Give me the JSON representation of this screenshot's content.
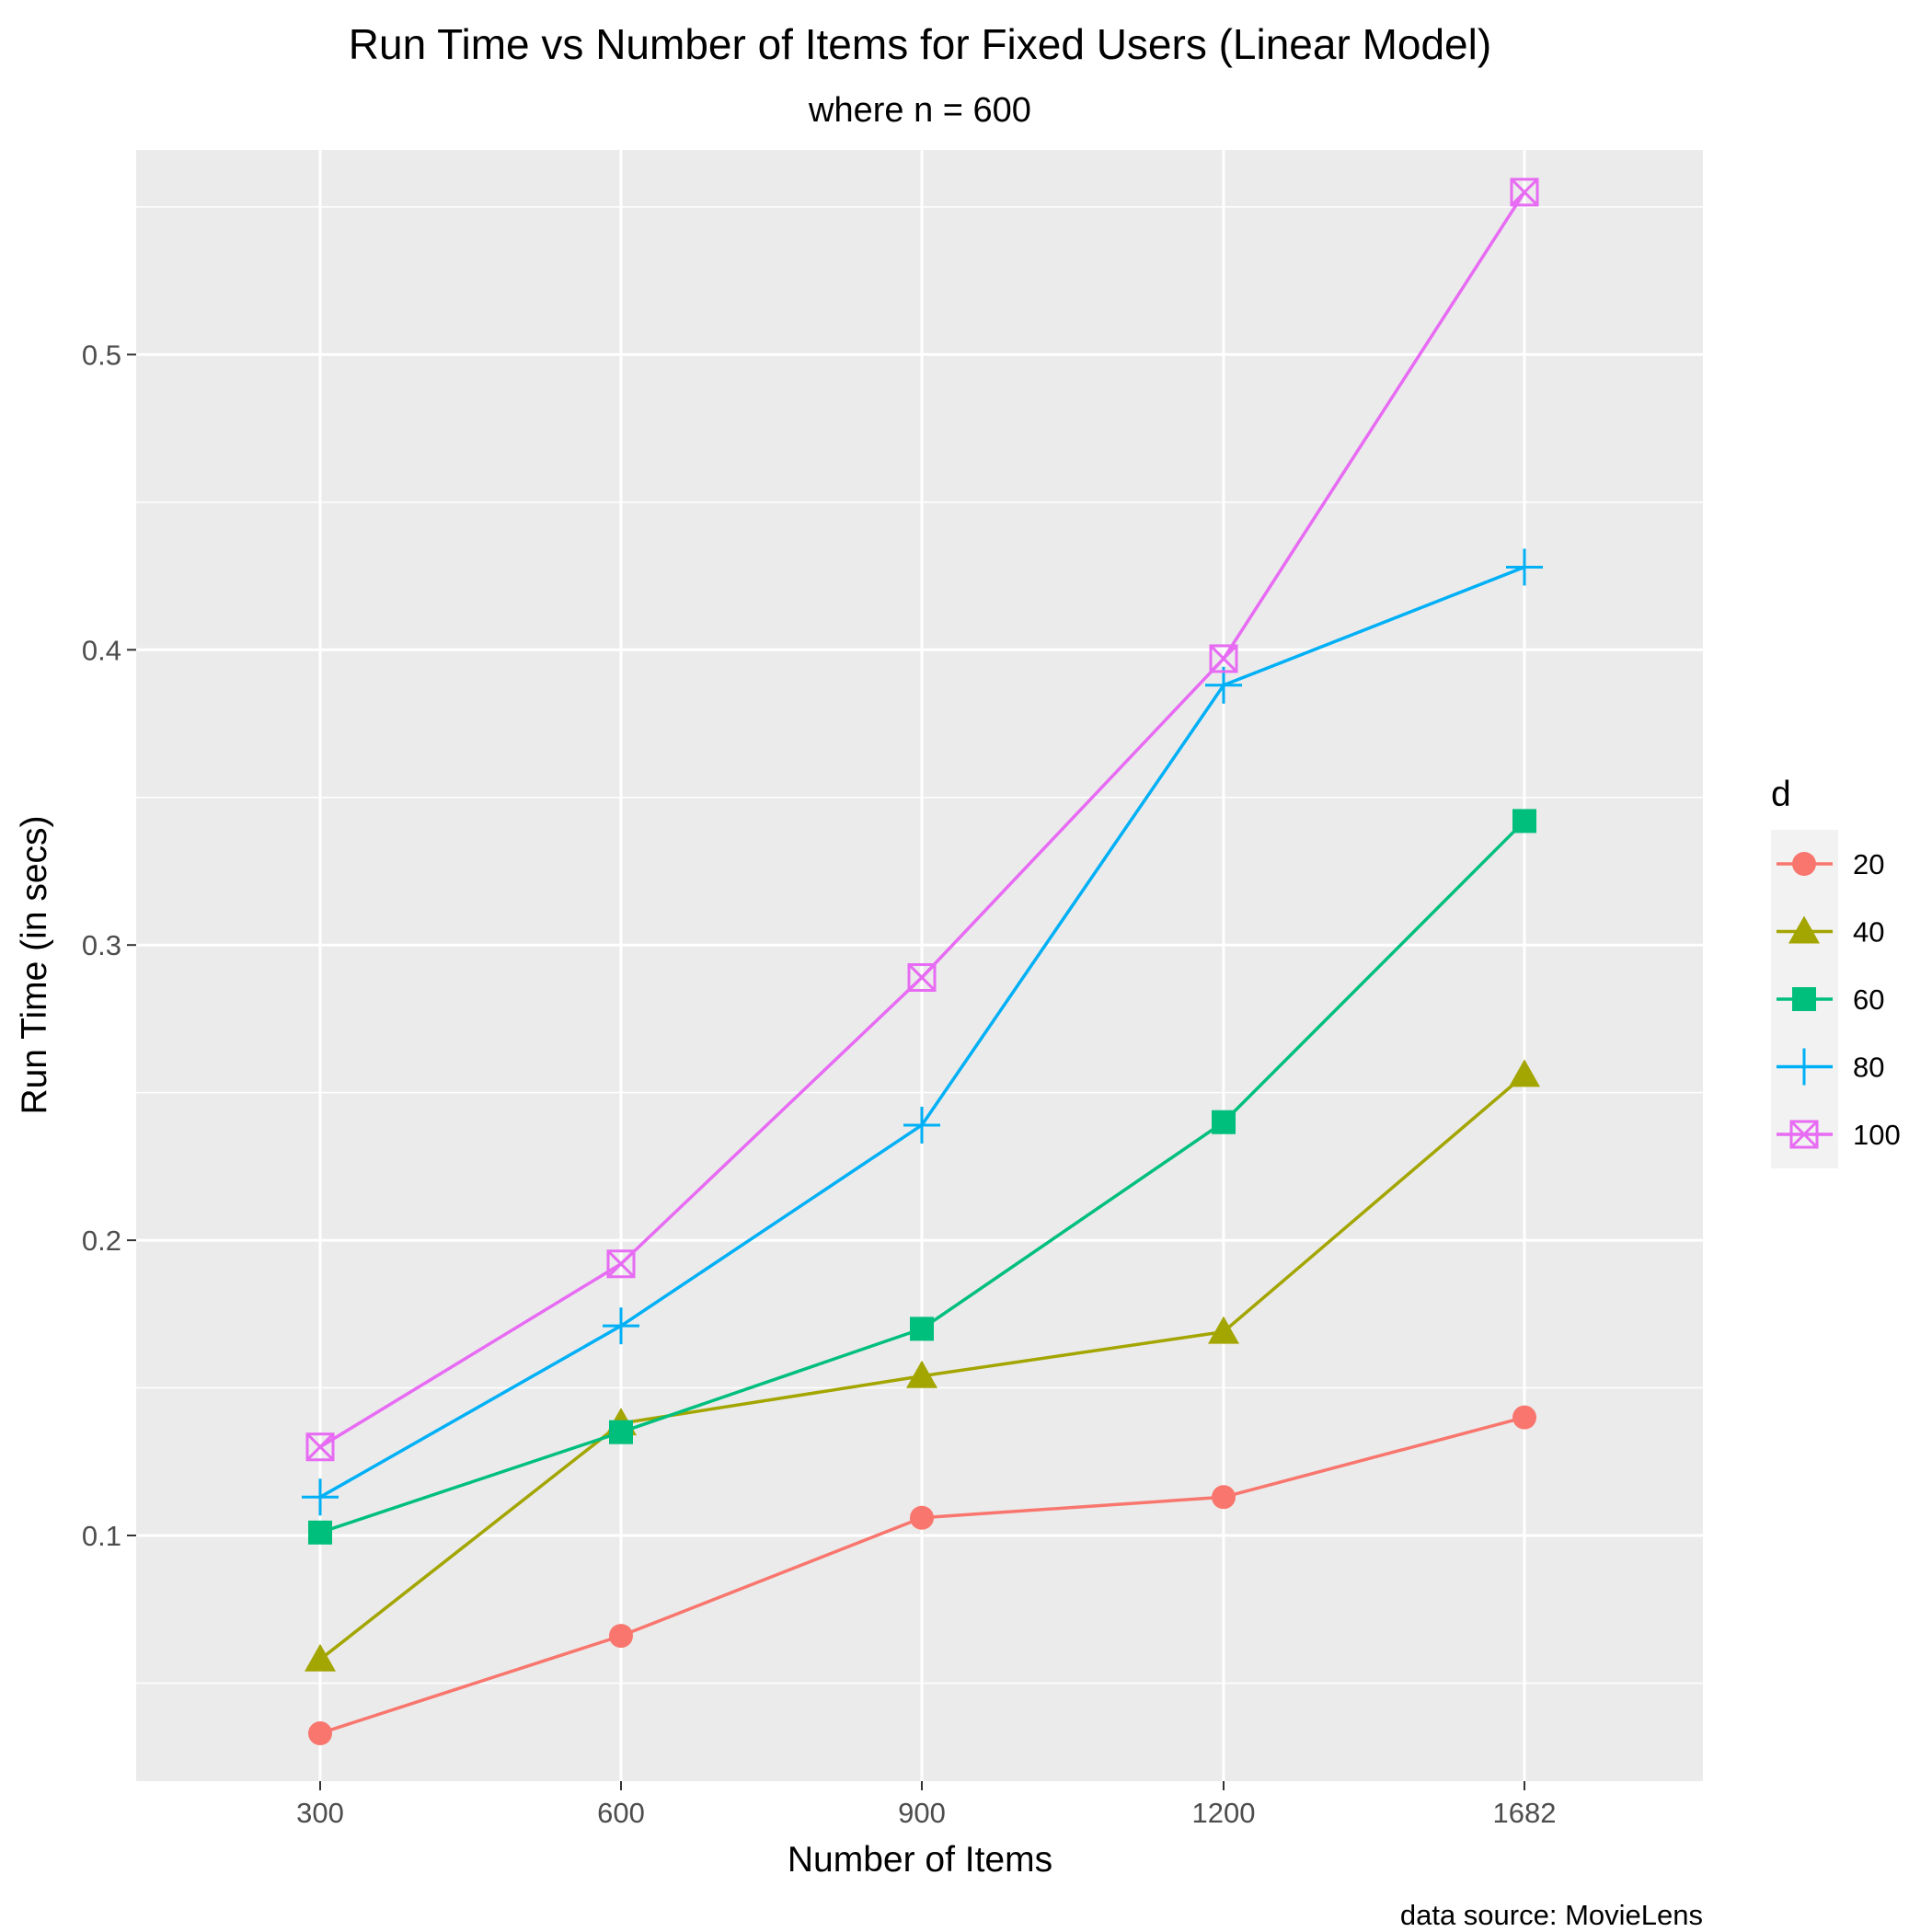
{
  "chart_data": {
    "type": "line",
    "title": "Run Time vs Number of Items for Fixed Users (Linear Model)",
    "subtitle": "where n = 600",
    "xlabel": "Number of Items",
    "ylabel": "Run Time (in secs)",
    "caption": "data source: MovieLens",
    "categories": [
      "300",
      "600",
      "900",
      "1200",
      "1682"
    ],
    "y_ticks": [
      "0.1",
      "0.2",
      "0.3",
      "0.4",
      "0.5"
    ],
    "ylim": [
      0.0168,
      0.5693
    ],
    "grid": true,
    "legend": {
      "title": "d",
      "position": "right"
    },
    "series": [
      {
        "name": "20",
        "shape": "circle",
        "color": "#F8766D",
        "values": [
          0.033,
          0.066,
          0.106,
          0.113,
          0.14
        ]
      },
      {
        "name": "40",
        "shape": "triangle",
        "color": "#A3A500",
        "values": [
          0.058,
          0.138,
          0.154,
          0.169,
          0.256
        ]
      },
      {
        "name": "60",
        "shape": "square",
        "color": "#00BF7D",
        "values": [
          0.101,
          0.135,
          0.17,
          0.24,
          0.342
        ]
      },
      {
        "name": "80",
        "shape": "plus",
        "color": "#00B0F6",
        "values": [
          0.113,
          0.171,
          0.239,
          0.388,
          0.428
        ]
      },
      {
        "name": "100",
        "shape": "boxcross",
        "color": "#E76BF3",
        "values": [
          0.13,
          0.192,
          0.289,
          0.397,
          0.555
        ]
      }
    ]
  }
}
